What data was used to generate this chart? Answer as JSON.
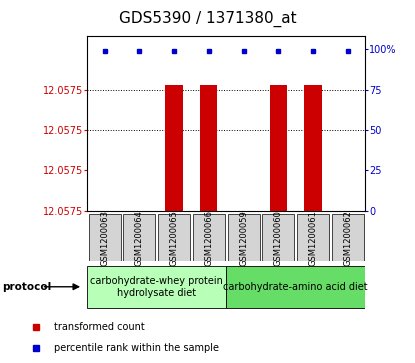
{
  "title": "GDS5390 / 1371380_at",
  "samples": [
    "GSM1200063",
    "GSM1200064",
    "GSM1200065",
    "GSM1200066",
    "GSM1200059",
    "GSM1200060",
    "GSM1200061",
    "GSM1200062"
  ],
  "red_bar_heights_pct": [
    0,
    0,
    78,
    78,
    0,
    78,
    78,
    0
  ],
  "blue_dot_pct": 99,
  "y_right_ticks": [
    0,
    25,
    50,
    75,
    100
  ],
  "dotted_lines_pct": [
    75,
    50
  ],
  "protocol_groups": [
    {
      "label": "carbohydrate-whey protein\nhydrolysate diet",
      "samples_idx": [
        0,
        1,
        2,
        3
      ],
      "color": "#b8ffb8"
    },
    {
      "label": "carbohydrate-amino acid diet",
      "samples_idx": [
        4,
        5,
        6,
        7
      ],
      "color": "#66dd66"
    }
  ],
  "bar_color": "#cc0000",
  "dot_color": "#0000cc",
  "title_fontsize": 11,
  "tick_fontsize": 7,
  "sample_fontsize": 6,
  "protocol_fontsize": 7,
  "legend_fontsize": 7,
  "left_tick_color": "#cc0000",
  "right_tick_color": "#0000cc",
  "sample_box_color": "#d4d4d4"
}
